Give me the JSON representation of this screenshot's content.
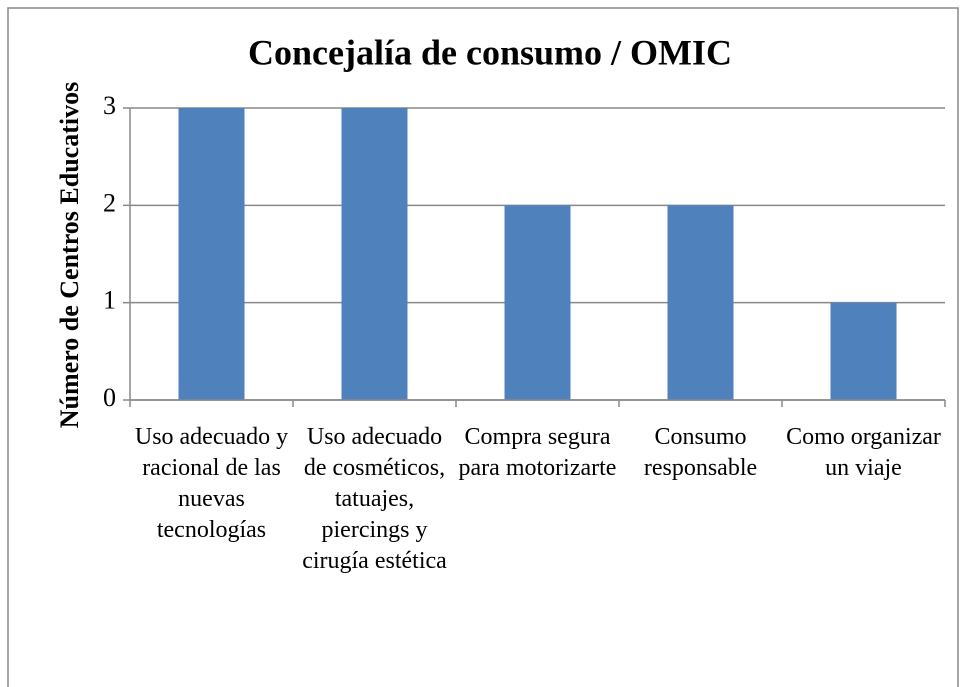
{
  "chart_data": {
    "type": "bar",
    "title": "Concejalía de consumo / OMIC",
    "y_label": "Número de Centros Educativos",
    "categories": [
      "Uso adecuado y racional de las nuevas tecnologías",
      "Uso adecuado de cosméticos, tatuajes, piercings y cirugía estética",
      "Compra segura para motorizarte",
      "Consumo responsable",
      "Como organizar un viaje"
    ],
    "values": [
      3,
      3,
      2,
      2,
      1
    ],
    "color": "#4f81bd",
    "ylim": [
      0,
      3
    ],
    "yticks": [
      0,
      1,
      2,
      3
    ],
    "grid": true
  }
}
